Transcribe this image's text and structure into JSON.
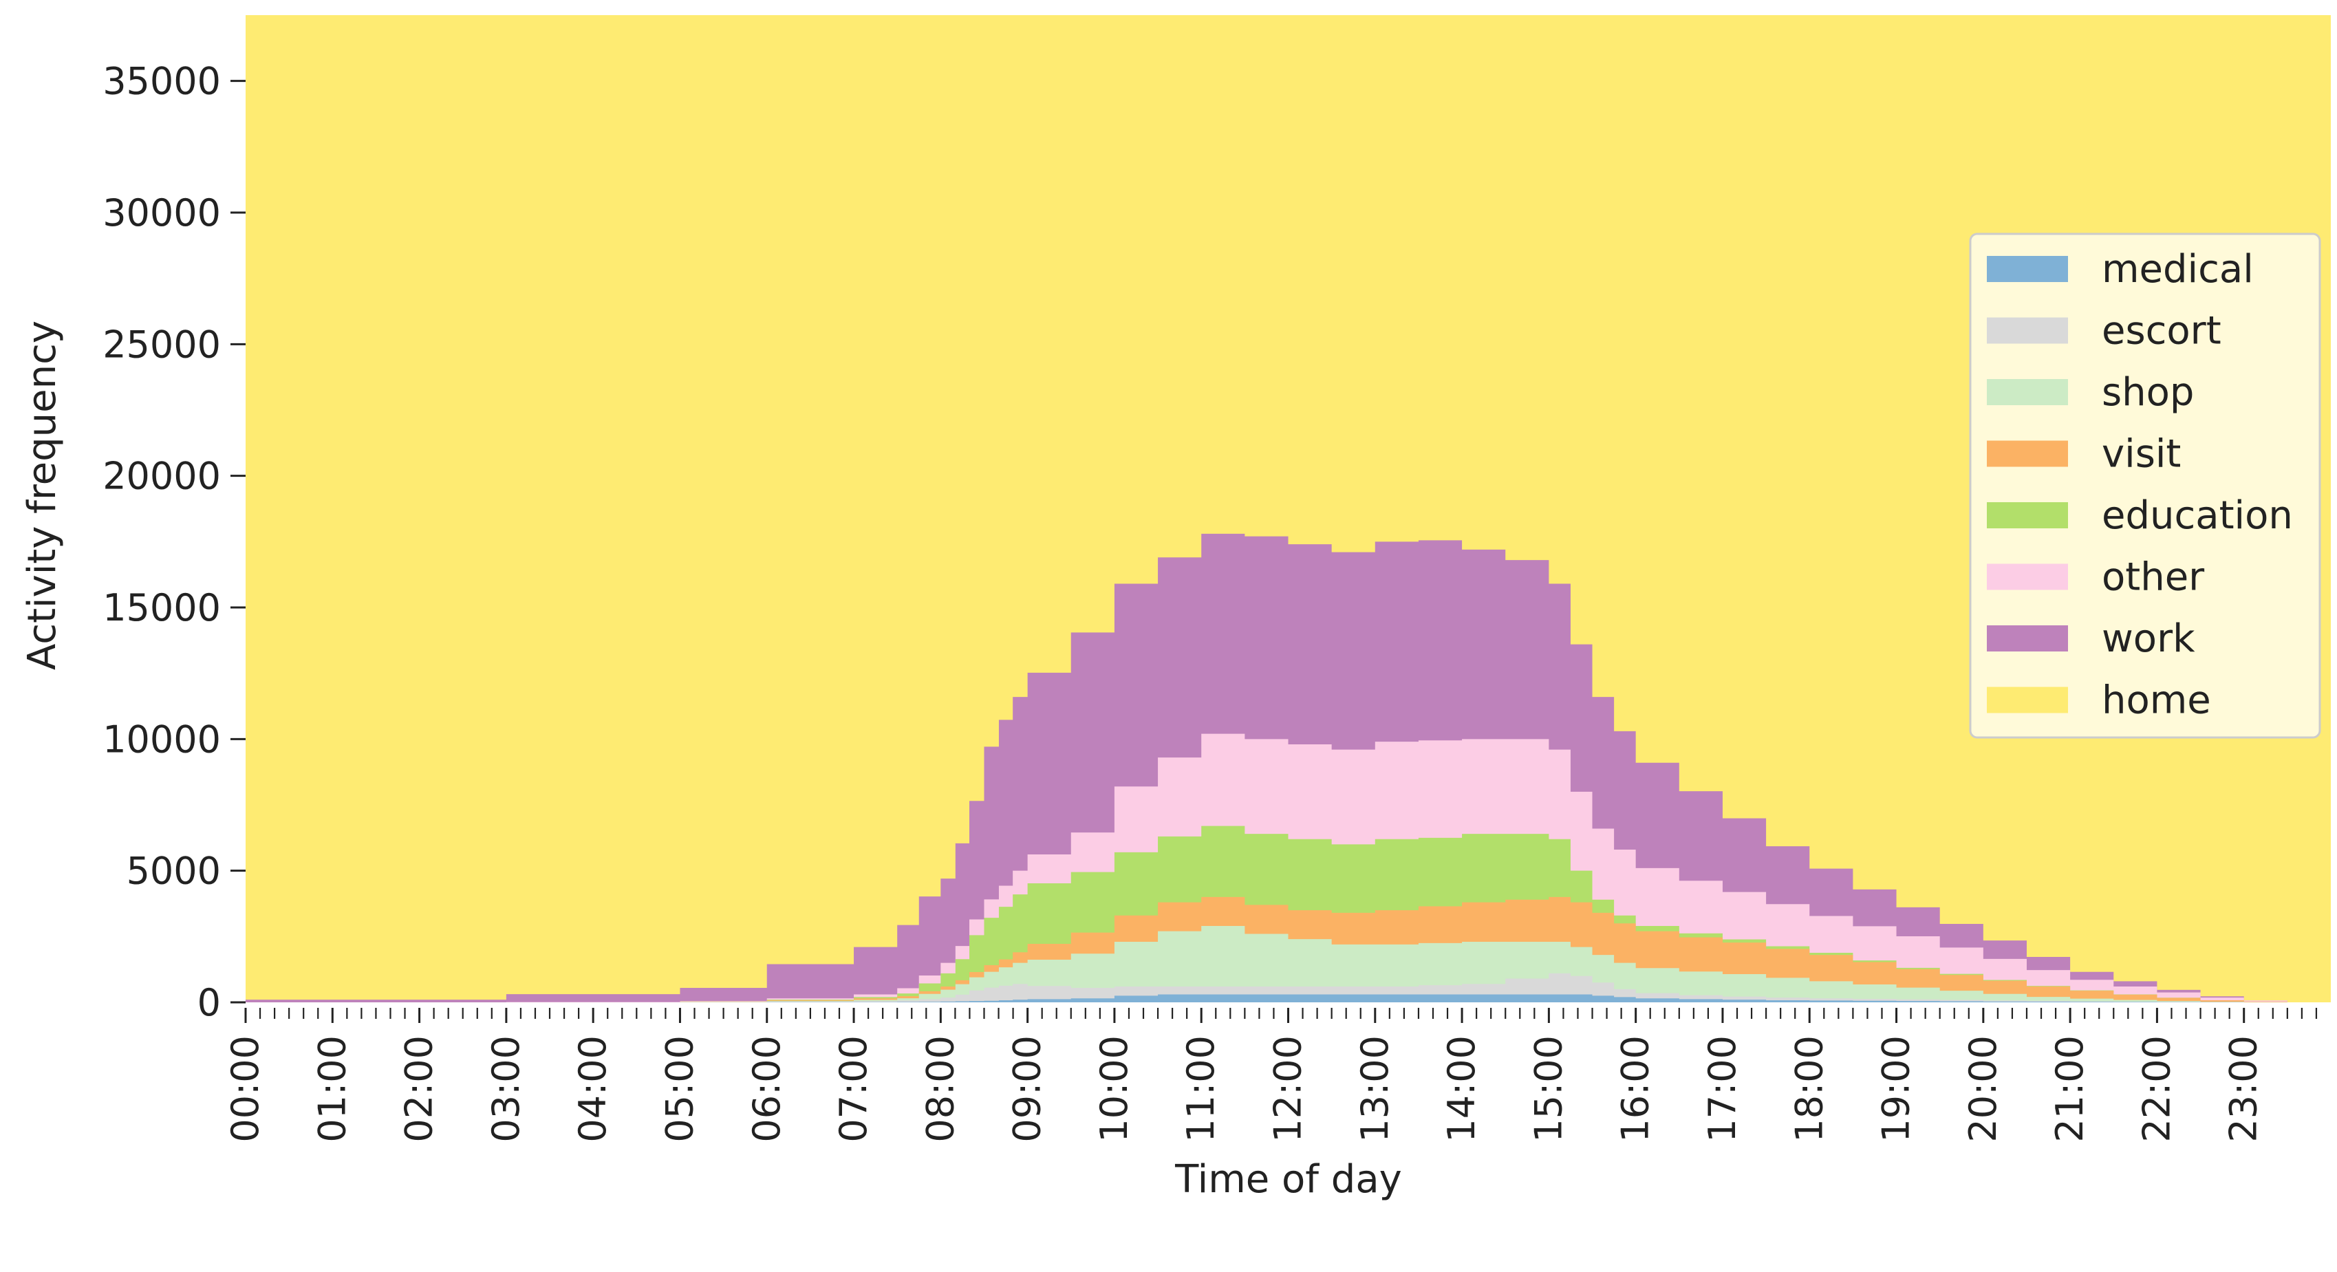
{
  "chart_data": {
    "type": "area",
    "stacked": true,
    "step": true,
    "xlabel": "Time of day",
    "ylabel": "Activity frequency",
    "ylim": [
      0,
      37500
    ],
    "yticks": [
      0,
      5000,
      10000,
      15000,
      20000,
      25000,
      30000,
      35000
    ],
    "xtick_labels": [
      "00:00",
      "01:00",
      "02:00",
      "03:00",
      "04:00",
      "05:00",
      "06:00",
      "07:00",
      "08:00",
      "09:00",
      "10:00",
      "11:00",
      "12:00",
      "13:00",
      "14:00",
      "15:00",
      "16:00",
      "17:00",
      "18:00",
      "19:00",
      "20:00",
      "21:00",
      "22:00",
      "23:00"
    ],
    "minor_ticks_per_hour": 6,
    "total": 37500,
    "legend_position": "center-right",
    "legend_order": [
      "medical",
      "escort",
      "shop",
      "visit",
      "education",
      "other",
      "work",
      "home"
    ],
    "x_hours": [
      3,
      5,
      6,
      7,
      7.5,
      7.75,
      8,
      8.17,
      8.33,
      8.5,
      8.67,
      8.83,
      9,
      9.5,
      10,
      10.5,
      11,
      11.5,
      12,
      12.5,
      13,
      13.5,
      14,
      14.5,
      15,
      15.25,
      15.5,
      15.75,
      16,
      16.5,
      17,
      17.5,
      18,
      18.5,
      19,
      19.5,
      20,
      20.5,
      21,
      21.5,
      22,
      22.5,
      23,
      23.5,
      24
    ],
    "series": [
      {
        "name": "medical",
        "color": "#7fb1d6",
        "values": [
          0,
          0,
          0,
          10,
          10,
          15,
          20,
          30,
          40,
          50,
          60,
          80,
          100,
          120,
          150,
          250,
          300,
          300,
          300,
          300,
          300,
          300,
          300,
          300,
          300,
          300,
          300,
          250,
          200,
          150,
          120,
          100,
          80,
          70,
          60,
          50,
          40,
          30,
          25,
          20,
          15,
          10,
          5,
          0,
          0
        ]
      },
      {
        "name": "escort",
        "color": "#d9d9d9",
        "values": [
          0,
          0,
          10,
          20,
          40,
          60,
          100,
          150,
          250,
          400,
          500,
          550,
          600,
          500,
          400,
          350,
          300,
          300,
          300,
          300,
          300,
          300,
          350,
          400,
          600,
          800,
          700,
          500,
          300,
          200,
          150,
          120,
          100,
          80,
          70,
          60,
          50,
          40,
          30,
          20,
          15,
          10,
          5,
          0,
          0
        ]
      },
      {
        "name": "shop",
        "color": "#ccebc5",
        "values": [
          0,
          0,
          10,
          20,
          40,
          80,
          200,
          300,
          400,
          500,
          600,
          700,
          800,
          1000,
          1300,
          1700,
          2100,
          2300,
          2000,
          1800,
          1600,
          1600,
          1600,
          1600,
          1400,
          1200,
          1100,
          1050,
          1000,
          950,
          900,
          850,
          750,
          650,
          550,
          450,
          350,
          250,
          150,
          100,
          60,
          30,
          10,
          0,
          0
        ]
      },
      {
        "name": "visit",
        "color": "#fbb264",
        "values": [
          0,
          0,
          10,
          30,
          60,
          80,
          100,
          120,
          150,
          200,
          250,
          300,
          400,
          600,
          800,
          1000,
          1100,
          1100,
          1100,
          1100,
          1200,
          1300,
          1400,
          1500,
          1600,
          1700,
          1700,
          1600,
          1500,
          1400,
          1300,
          1200,
          1100,
          1000,
          850,
          700,
          600,
          500,
          400,
          300,
          200,
          120,
          60,
          20,
          0
        ]
      },
      {
        "name": "education",
        "color": "#b2df6a",
        "values": [
          0,
          0,
          0,
          20,
          50,
          100,
          300,
          500,
          800,
          1400,
          1800,
          2000,
          2200,
          2300,
          2300,
          2400,
          2500,
          2700,
          2700,
          2700,
          2600,
          2700,
          2600,
          2600,
          2500,
          2200,
          1200,
          500,
          300,
          200,
          150,
          120,
          100,
          80,
          60,
          50,
          40,
          30,
          20,
          15,
          10,
          5,
          0,
          0,
          0
        ]
      },
      {
        "name": "other",
        "color": "#fccde5",
        "values": [
          0,
          10,
          20,
          50,
          100,
          200,
          300,
          400,
          500,
          600,
          700,
          800,
          900,
          1100,
          1500,
          2500,
          3000,
          3500,
          3600,
          3600,
          3600,
          3700,
          3700,
          3600,
          3600,
          3400,
          3000,
          2700,
          2500,
          2200,
          2000,
          1800,
          1600,
          1400,
          1300,
          1200,
          1000,
          800,
          600,
          400,
          300,
          200,
          100,
          50,
          0
        ]
      },
      {
        "name": "work",
        "color": "#be82bb",
        "values": [
          100,
          300,
          500,
          1300,
          1800,
          2400,
          3000,
          3200,
          3900,
          4500,
          5800,
          6300,
          6600,
          6900,
          7600,
          7700,
          7600,
          7600,
          7700,
          7600,
          7500,
          7600,
          7600,
          7200,
          6800,
          6300,
          5600,
          5000,
          4500,
          4000,
          3400,
          2800,
          2200,
          1800,
          1400,
          1100,
          900,
          700,
          500,
          300,
          200,
          100,
          50,
          0,
          0
        ]
      }
    ],
    "background_series": {
      "name": "home",
      "color": "#feeb72"
    }
  }
}
